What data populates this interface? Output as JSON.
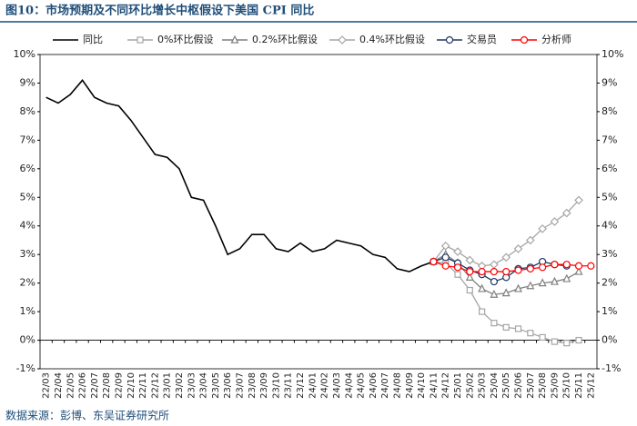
{
  "chart_data": {
    "type": "line",
    "title": "图10：市场预期及不同环比增长中枢假设下美国 CPI 同比",
    "source": "数据来源：彭博、东吴证券研究所",
    "categories": [
      "22/03",
      "22/04",
      "22/05",
      "22/06",
      "22/07",
      "22/08",
      "22/09",
      "22/10",
      "22/11",
      "22/12",
      "23/01",
      "23/02",
      "23/03",
      "23/04",
      "23/05",
      "23/06",
      "23/07",
      "23/08",
      "23/09",
      "23/10",
      "23/11",
      "23/12",
      "24/01",
      "24/02",
      "24/03",
      "24/04",
      "24/05",
      "24/06",
      "24/07",
      "24/08",
      "24/09",
      "24/10",
      "24/11",
      "24/12",
      "25/01",
      "25/02",
      "25/03",
      "25/04",
      "25/05",
      "25/06",
      "25/07",
      "25/08",
      "25/09",
      "25/10",
      "25/11",
      "25/12"
    ],
    "ylim": [
      -1,
      10
    ],
    "yticks": [
      {
        "value": -1,
        "label": "-1%"
      },
      {
        "value": 0,
        "label": "0%"
      },
      {
        "value": 1,
        "label": "1%"
      },
      {
        "value": 2,
        "label": "2%"
      },
      {
        "value": 3,
        "label": "3%"
      },
      {
        "value": 4,
        "label": "4%"
      },
      {
        "value": 5,
        "label": "5%"
      },
      {
        "value": 6,
        "label": "6%"
      },
      {
        "value": 7,
        "label": "7%"
      },
      {
        "value": 8,
        "label": "8%"
      },
      {
        "value": 9,
        "label": "9%"
      },
      {
        "value": 10,
        "label": "10%"
      }
    ],
    "y2lim": [
      -1,
      10
    ],
    "y2ticks": [
      {
        "value": -1,
        "label": "-1%"
      },
      {
        "value": 0,
        "label": "0%"
      },
      {
        "value": 1,
        "label": "1%"
      },
      {
        "value": 2,
        "label": "2%"
      },
      {
        "value": 3,
        "label": "3%"
      },
      {
        "value": 4,
        "label": "4%"
      },
      {
        "value": 5,
        "label": "5%"
      },
      {
        "value": 6,
        "label": "6%"
      },
      {
        "value": 7,
        "label": "7%"
      },
      {
        "value": 8,
        "label": "8%"
      },
      {
        "value": 9,
        "label": "9%"
      },
      {
        "value": 10,
        "label": "10%"
      }
    ],
    "grid": false,
    "legend": "top",
    "series": [
      {
        "name": "同比",
        "color": "#000000",
        "marker": "none",
        "dash": false,
        "values": [
          8.5,
          8.3,
          8.6,
          9.1,
          8.5,
          8.3,
          8.2,
          7.7,
          7.1,
          6.5,
          6.4,
          6.0,
          5.0,
          4.9,
          4.0,
          3.0,
          3.2,
          3.7,
          3.7,
          3.2,
          3.1,
          3.4,
          3.1,
          3.2,
          3.5,
          3.4,
          3.3,
          3.0,
          2.9,
          2.5,
          2.4,
          2.6,
          2.75,
          null,
          null,
          null,
          null,
          null,
          null,
          null,
          null,
          null,
          null,
          null,
          null,
          null
        ]
      },
      {
        "name": "0%环比假设",
        "color": "#a6a6a6",
        "marker": "square",
        "dash": false,
        "values": [
          null,
          null,
          null,
          null,
          null,
          null,
          null,
          null,
          null,
          null,
          null,
          null,
          null,
          null,
          null,
          null,
          null,
          null,
          null,
          null,
          null,
          null,
          null,
          null,
          null,
          null,
          null,
          null,
          null,
          null,
          null,
          null,
          2.75,
          2.7,
          2.3,
          1.75,
          1.0,
          0.6,
          0.45,
          0.4,
          0.25,
          0.1,
          -0.05,
          -0.1,
          0.0,
          null
        ]
      },
      {
        "name": "0.2%环比假设",
        "color": "#808080",
        "marker": "triangle",
        "dash": false,
        "values": [
          null,
          null,
          null,
          null,
          null,
          null,
          null,
          null,
          null,
          null,
          null,
          null,
          null,
          null,
          null,
          null,
          null,
          null,
          null,
          null,
          null,
          null,
          null,
          null,
          null,
          null,
          null,
          null,
          null,
          null,
          null,
          null,
          2.75,
          3.0,
          2.7,
          2.2,
          1.8,
          1.6,
          1.65,
          1.8,
          1.9,
          2.0,
          2.05,
          2.15,
          2.4,
          null
        ]
      },
      {
        "name": "0.4%环比假设",
        "color": "#a6a6a6",
        "marker": "diamond",
        "dash": false,
        "values": [
          null,
          null,
          null,
          null,
          null,
          null,
          null,
          null,
          null,
          null,
          null,
          null,
          null,
          null,
          null,
          null,
          null,
          null,
          null,
          null,
          null,
          null,
          null,
          null,
          null,
          null,
          null,
          null,
          null,
          null,
          null,
          null,
          2.75,
          3.3,
          3.1,
          2.8,
          2.6,
          2.65,
          2.9,
          3.2,
          3.5,
          3.9,
          4.15,
          4.45,
          4.9,
          null
        ]
      },
      {
        "name": "交易员",
        "color": "#1f3864",
        "marker": "circle",
        "dash": false,
        "values": [
          null,
          null,
          null,
          null,
          null,
          null,
          null,
          null,
          null,
          null,
          null,
          null,
          null,
          null,
          null,
          null,
          null,
          null,
          null,
          null,
          null,
          null,
          null,
          null,
          null,
          null,
          null,
          null,
          null,
          null,
          null,
          null,
          2.75,
          2.9,
          2.7,
          2.45,
          2.3,
          2.05,
          2.2,
          2.5,
          2.55,
          2.75,
          2.65,
          2.6,
          null,
          null
        ]
      },
      {
        "name": "分析师",
        "color": "#ff0000",
        "marker": "circle",
        "dash": false,
        "values": [
          null,
          null,
          null,
          null,
          null,
          null,
          null,
          null,
          null,
          null,
          null,
          null,
          null,
          null,
          null,
          null,
          null,
          null,
          null,
          null,
          null,
          null,
          null,
          null,
          null,
          null,
          null,
          null,
          null,
          null,
          null,
          null,
          2.75,
          2.6,
          2.55,
          2.4,
          2.4,
          2.4,
          2.4,
          2.45,
          2.5,
          2.55,
          2.65,
          2.65,
          2.6,
          2.6
        ]
      }
    ]
  }
}
